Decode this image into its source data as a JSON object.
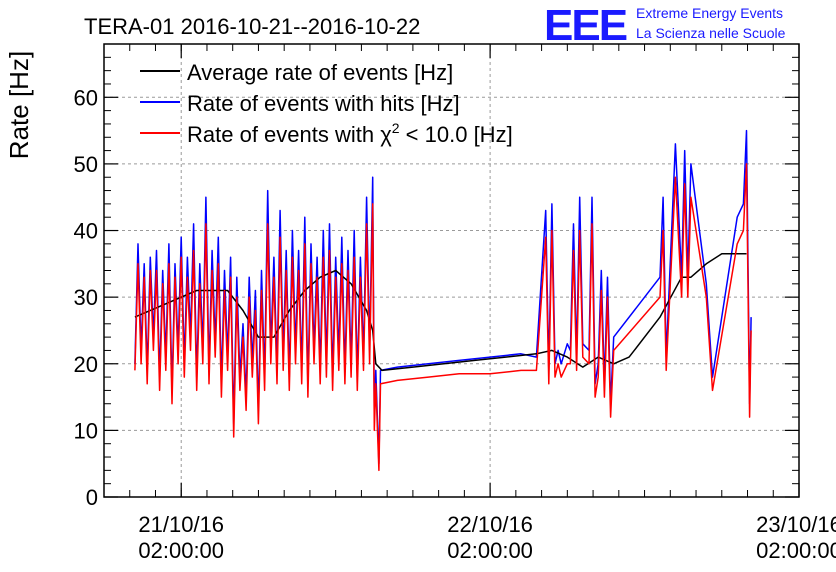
{
  "title": "TERA-01 2016-10-21--2016-10-22",
  "logo": {
    "mark": "EEE",
    "line1": "Extreme Energy Events",
    "line2": "La Scienza nelle Scuole",
    "color": "#1a1aff"
  },
  "chart_data": {
    "type": "line",
    "title": "TERA-01 2016-10-21--2016-10-22",
    "xlabel": "",
    "ylabel": "Rate [Hz]",
    "ylim": [
      0,
      68
    ],
    "xlim": [
      -0.25,
      2.0
    ],
    "y_ticks": [
      0,
      10,
      20,
      30,
      40,
      50,
      60
    ],
    "x_ticks": [
      {
        "pos": 0.0,
        "date": "21/10/16",
        "time": "02:00:00"
      },
      {
        "pos": 1.0,
        "date": "22/10/16",
        "time": "02:00:00"
      },
      {
        "pos": 2.0,
        "date": "23/10/16",
        "time": "02:00:00"
      }
    ],
    "x_unit": "days since 2016-10-21 02:00",
    "grid": true,
    "legend_position": "top-left",
    "series": [
      {
        "name": "Average rate of events [Hz]",
        "color": "#000000",
        "points": [
          [
            -0.15,
            27
          ],
          [
            -0.05,
            29
          ],
          [
            0.05,
            31
          ],
          [
            0.15,
            31
          ],
          [
            0.2,
            28
          ],
          [
            0.25,
            24
          ],
          [
            0.3,
            24
          ],
          [
            0.35,
            28
          ],
          [
            0.4,
            31
          ],
          [
            0.45,
            33
          ],
          [
            0.5,
            34
          ],
          [
            0.55,
            32
          ],
          [
            0.6,
            28
          ],
          [
            0.62,
            25
          ],
          [
            0.63,
            20
          ],
          [
            0.65,
            19
          ],
          [
            0.75,
            19.5
          ],
          [
            0.85,
            20
          ],
          [
            0.95,
            20.5
          ],
          [
            1.05,
            21
          ],
          [
            1.15,
            21.5
          ],
          [
            1.2,
            22
          ],
          [
            1.25,
            21
          ],
          [
            1.3,
            19.5
          ],
          [
            1.35,
            21
          ],
          [
            1.4,
            20
          ],
          [
            1.45,
            21
          ],
          [
            1.55,
            27
          ],
          [
            1.62,
            33
          ],
          [
            1.65,
            33
          ],
          [
            1.7,
            35
          ],
          [
            1.75,
            36.5
          ],
          [
            1.8,
            36.5
          ],
          [
            1.83,
            36.5
          ]
        ]
      },
      {
        "name": "Rate of events with hits [Hz]",
        "label_parts": {
          "main": "Rate of events with hits [Hz]"
        },
        "color": "#0000ff",
        "points": [
          [
            -0.15,
            20
          ],
          [
            -0.14,
            38
          ],
          [
            -0.13,
            22
          ],
          [
            -0.12,
            35
          ],
          [
            -0.11,
            19
          ],
          [
            -0.1,
            36
          ],
          [
            -0.09,
            24
          ],
          [
            -0.08,
            37
          ],
          [
            -0.07,
            18
          ],
          [
            -0.06,
            34
          ],
          [
            -0.05,
            21
          ],
          [
            -0.04,
            38
          ],
          [
            -0.03,
            16
          ],
          [
            -0.02,
            35
          ],
          [
            -0.01,
            22
          ],
          [
            0.0,
            39
          ],
          [
            0.01,
            20
          ],
          [
            0.02,
            36
          ],
          [
            0.03,
            24
          ],
          [
            0.04,
            41
          ],
          [
            0.05,
            18
          ],
          [
            0.06,
            35
          ],
          [
            0.07,
            22
          ],
          [
            0.08,
            45
          ],
          [
            0.09,
            19
          ],
          [
            0.1,
            37
          ],
          [
            0.11,
            23
          ],
          [
            0.12,
            39
          ],
          [
            0.13,
            17
          ],
          [
            0.14,
            34
          ],
          [
            0.15,
            21
          ],
          [
            0.16,
            36
          ],
          [
            0.17,
            11
          ],
          [
            0.18,
            33
          ],
          [
            0.19,
            18
          ],
          [
            0.2,
            26
          ],
          [
            0.21,
            15
          ],
          [
            0.22,
            33
          ],
          [
            0.23,
            20
          ],
          [
            0.24,
            31
          ],
          [
            0.25,
            13
          ],
          [
            0.26,
            34
          ],
          [
            0.27,
            18
          ],
          [
            0.28,
            46
          ],
          [
            0.29,
            22
          ],
          [
            0.3,
            36
          ],
          [
            0.31,
            19
          ],
          [
            0.32,
            43
          ],
          [
            0.33,
            21
          ],
          [
            0.34,
            37
          ],
          [
            0.35,
            18
          ],
          [
            0.36,
            40
          ],
          [
            0.37,
            22
          ],
          [
            0.38,
            37
          ],
          [
            0.39,
            19
          ],
          [
            0.4,
            42
          ],
          [
            0.41,
            17
          ],
          [
            0.42,
            38
          ],
          [
            0.43,
            22
          ],
          [
            0.44,
            36
          ],
          [
            0.45,
            19
          ],
          [
            0.46,
            40
          ],
          [
            0.47,
            20
          ],
          [
            0.48,
            41
          ],
          [
            0.49,
            18
          ],
          [
            0.5,
            36
          ],
          [
            0.51,
            21
          ],
          [
            0.52,
            39
          ],
          [
            0.53,
            19
          ],
          [
            0.54,
            37
          ],
          [
            0.55,
            20
          ],
          [
            0.56,
            40
          ],
          [
            0.57,
            18
          ],
          [
            0.58,
            36
          ],
          [
            0.59,
            21
          ],
          [
            0.6,
            45
          ],
          [
            0.61,
            22
          ],
          [
            0.62,
            48
          ],
          [
            0.625,
            12
          ],
          [
            0.63,
            19
          ],
          [
            0.64,
            5
          ],
          [
            0.645,
            19
          ],
          [
            0.7,
            19.5
          ],
          [
            0.8,
            20
          ],
          [
            0.9,
            20.5
          ],
          [
            1.0,
            21
          ],
          [
            1.1,
            21.5
          ],
          [
            1.15,
            21
          ],
          [
            1.18,
            43
          ],
          [
            1.19,
            19
          ],
          [
            1.2,
            44
          ],
          [
            1.21,
            20
          ],
          [
            1.22,
            22
          ],
          [
            1.23,
            20
          ],
          [
            1.25,
            23
          ],
          [
            1.26,
            22
          ],
          [
            1.27,
            41
          ],
          [
            1.28,
            21
          ],
          [
            1.29,
            45
          ],
          [
            1.3,
            23
          ],
          [
            1.32,
            22
          ],
          [
            1.33,
            45
          ],
          [
            1.34,
            17
          ],
          [
            1.35,
            20
          ],
          [
            1.36,
            34
          ],
          [
            1.37,
            17
          ],
          [
            1.38,
            33
          ],
          [
            1.39,
            14
          ],
          [
            1.4,
            24
          ],
          [
            1.55,
            33
          ],
          [
            1.56,
            45
          ],
          [
            1.57,
            21
          ],
          [
            1.6,
            53
          ],
          [
            1.62,
            33
          ],
          [
            1.63,
            52
          ],
          [
            1.64,
            33
          ],
          [
            1.65,
            50
          ],
          [
            1.7,
            32
          ],
          [
            1.72,
            18
          ],
          [
            1.8,
            42
          ],
          [
            1.82,
            44
          ],
          [
            1.83,
            55
          ],
          [
            1.84,
            14
          ],
          [
            1.845,
            27
          ]
        ]
      },
      {
        "name": "Rate of events with χ² < 10.0 [Hz]",
        "label_parts": {
          "before": "Rate of events with χ",
          "sup": "2",
          "after": " < 10.0 [Hz]"
        },
        "color": "#ff0000",
        "points": [
          [
            -0.15,
            19
          ],
          [
            -0.14,
            35
          ],
          [
            -0.13,
            20
          ],
          [
            -0.12,
            33
          ],
          [
            -0.11,
            17
          ],
          [
            -0.1,
            34
          ],
          [
            -0.09,
            22
          ],
          [
            -0.08,
            34
          ],
          [
            -0.07,
            16
          ],
          [
            -0.06,
            32
          ],
          [
            -0.05,
            19
          ],
          [
            -0.04,
            35
          ],
          [
            -0.03,
            14
          ],
          [
            -0.02,
            33
          ],
          [
            -0.01,
            20
          ],
          [
            0.0,
            36
          ],
          [
            0.01,
            18
          ],
          [
            0.02,
            33
          ],
          [
            0.03,
            22
          ],
          [
            0.04,
            37
          ],
          [
            0.05,
            16
          ],
          [
            0.06,
            32
          ],
          [
            0.07,
            20
          ],
          [
            0.08,
            41
          ],
          [
            0.09,
            17
          ],
          [
            0.1,
            34
          ],
          [
            0.11,
            21
          ],
          [
            0.12,
            35
          ],
          [
            0.13,
            15
          ],
          [
            0.14,
            31
          ],
          [
            0.15,
            19
          ],
          [
            0.16,
            33
          ],
          [
            0.17,
            9
          ],
          [
            0.18,
            30
          ],
          [
            0.19,
            16
          ],
          [
            0.2,
            24
          ],
          [
            0.21,
            13
          ],
          [
            0.22,
            30
          ],
          [
            0.23,
            18
          ],
          [
            0.24,
            28
          ],
          [
            0.25,
            11
          ],
          [
            0.26,
            31
          ],
          [
            0.27,
            16
          ],
          [
            0.28,
            41
          ],
          [
            0.29,
            20
          ],
          [
            0.3,
            33
          ],
          [
            0.31,
            17
          ],
          [
            0.32,
            39
          ],
          [
            0.33,
            19
          ],
          [
            0.34,
            34
          ],
          [
            0.35,
            16
          ],
          [
            0.36,
            36
          ],
          [
            0.37,
            20
          ],
          [
            0.38,
            34
          ],
          [
            0.39,
            17
          ],
          [
            0.4,
            38
          ],
          [
            0.41,
            15
          ],
          [
            0.42,
            35
          ],
          [
            0.43,
            20
          ],
          [
            0.44,
            33
          ],
          [
            0.45,
            17
          ],
          [
            0.46,
            36
          ],
          [
            0.47,
            18
          ],
          [
            0.48,
            37
          ],
          [
            0.49,
            16
          ],
          [
            0.5,
            33
          ],
          [
            0.51,
            19
          ],
          [
            0.52,
            35
          ],
          [
            0.53,
            17
          ],
          [
            0.54,
            34
          ],
          [
            0.55,
            18
          ],
          [
            0.56,
            36
          ],
          [
            0.57,
            16
          ],
          [
            0.58,
            33
          ],
          [
            0.59,
            19
          ],
          [
            0.6,
            41
          ],
          [
            0.61,
            20
          ],
          [
            0.62,
            44
          ],
          [
            0.625,
            10
          ],
          [
            0.63,
            17
          ],
          [
            0.64,
            4
          ],
          [
            0.645,
            17
          ],
          [
            0.7,
            17.5
          ],
          [
            0.8,
            18
          ],
          [
            0.9,
            18.5
          ],
          [
            1.0,
            18.5
          ],
          [
            1.1,
            19
          ],
          [
            1.15,
            19
          ],
          [
            1.18,
            39
          ],
          [
            1.19,
            17
          ],
          [
            1.2,
            40
          ],
          [
            1.21,
            18
          ],
          [
            1.22,
            20
          ],
          [
            1.23,
            18
          ],
          [
            1.25,
            20
          ],
          [
            1.26,
            20
          ],
          [
            1.27,
            37
          ],
          [
            1.28,
            19
          ],
          [
            1.29,
            40
          ],
          [
            1.3,
            21
          ],
          [
            1.32,
            20
          ],
          [
            1.33,
            41
          ],
          [
            1.34,
            15
          ],
          [
            1.35,
            18
          ],
          [
            1.36,
            31
          ],
          [
            1.37,
            15
          ],
          [
            1.38,
            30
          ],
          [
            1.39,
            12
          ],
          [
            1.4,
            22
          ],
          [
            1.55,
            30
          ],
          [
            1.56,
            40
          ],
          [
            1.57,
            19
          ],
          [
            1.6,
            48
          ],
          [
            1.62,
            30
          ],
          [
            1.63,
            47
          ],
          [
            1.64,
            30
          ],
          [
            1.65,
            45
          ],
          [
            1.7,
            30
          ],
          [
            1.72,
            16
          ],
          [
            1.8,
            38
          ],
          [
            1.82,
            40
          ],
          [
            1.83,
            50
          ],
          [
            1.84,
            12
          ],
          [
            1.845,
            25
          ]
        ]
      }
    ]
  }
}
